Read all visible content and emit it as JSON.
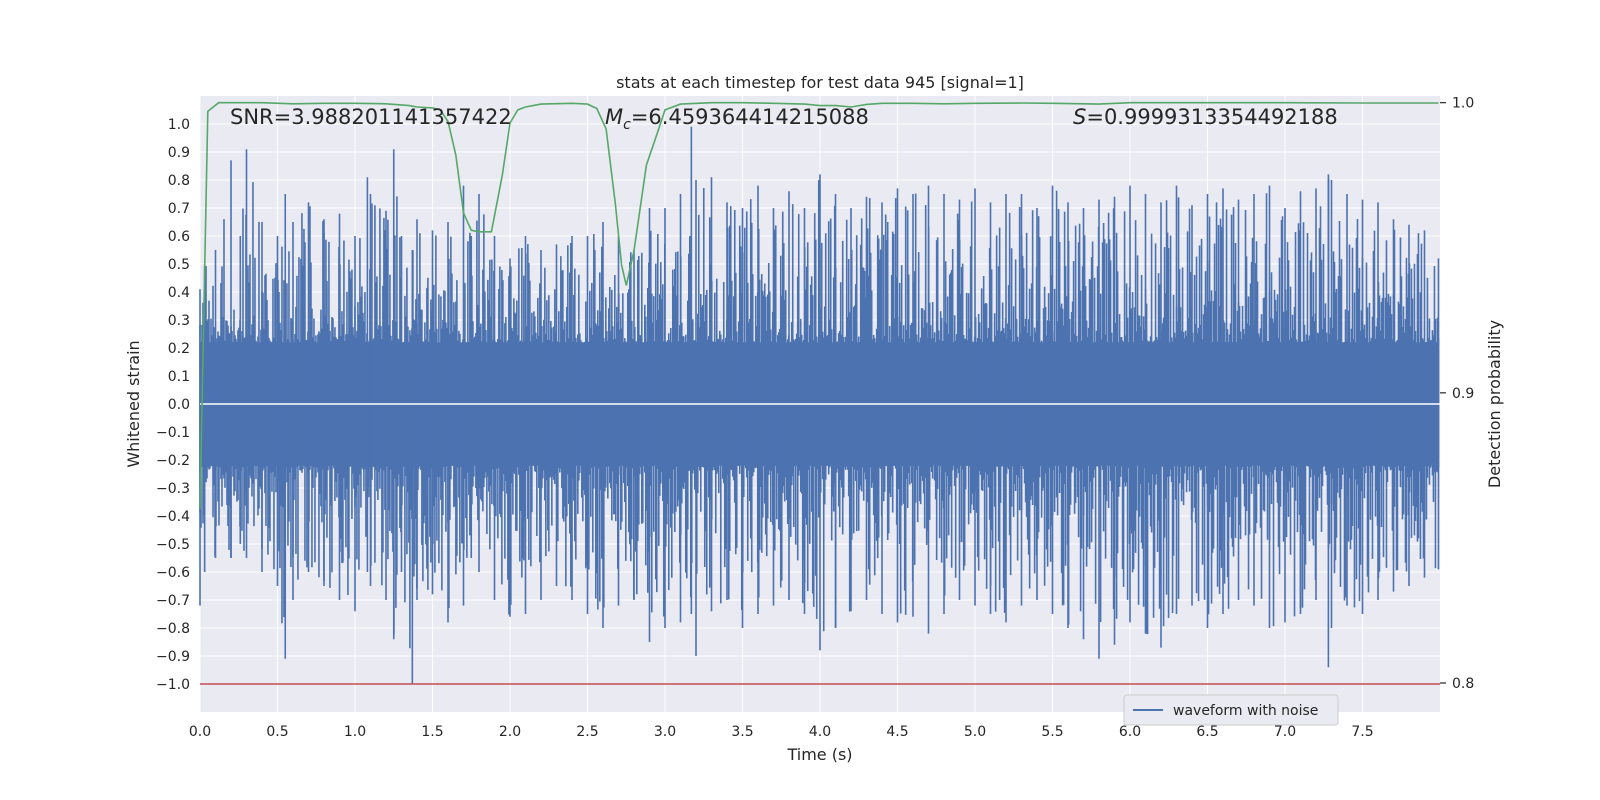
{
  "chart_data": {
    "type": "line",
    "title": "stats at each timestep for test data 945 [signal=1]",
    "xlabel": "Time (s)",
    "ylabel": "Whitened strain",
    "y2label": "Detection probability",
    "xlim": [
      0.0,
      8.0
    ],
    "ylim": [
      -1.1,
      1.1
    ],
    "y2lim": [
      0.79,
      1.0023
    ],
    "x_ticks": [
      0.0,
      0.5,
      1.0,
      1.5,
      2.0,
      2.5,
      3.0,
      3.5,
      4.0,
      4.5,
      5.0,
      5.5,
      6.0,
      6.5,
      7.0,
      7.5
    ],
    "x_tick_labels": [
      "0.0",
      "0.5",
      "1.0",
      "1.5",
      "2.0",
      "2.5",
      "3.0",
      "3.5",
      "4.0",
      "4.5",
      "5.0",
      "5.5",
      "6.0",
      "6.5",
      "7.0",
      "7.5"
    ],
    "y_ticks": [
      1.0,
      0.9,
      0.8,
      0.7,
      0.6,
      0.5,
      0.4,
      0.3,
      0.2,
      0.1,
      0.0,
      -0.1,
      -0.2,
      -0.3,
      -0.4,
      -0.5,
      -0.6,
      -0.7,
      -0.8,
      -0.9,
      -1.0
    ],
    "y_tick_labels": [
      "1.0",
      "0.9",
      "0.8",
      "0.7",
      "0.6",
      "0.5",
      "0.4",
      "0.3",
      "0.2",
      "0.1",
      "0.0",
      "−0.1",
      "−0.2",
      "−0.3",
      "−0.4",
      "−0.5",
      "−0.6",
      "−0.7",
      "−0.8",
      "−0.9",
      "−1.0"
    ],
    "y2_ticks": [
      1.0,
      0.9,
      0.8
    ],
    "y2_tick_labels": [
      "1.0",
      "0.9",
      "0.8"
    ],
    "grid": true,
    "legend": {
      "placement": "lower-right",
      "entries": [
        "waveform with noise"
      ]
    },
    "annotations": {
      "snr": "SNR=3.988201141357422",
      "mc_symbol": "M",
      "mc_sub": "c",
      "mc_value": "=6.459364414215088",
      "s_symbol": "S",
      "s_value": "=0.9999313354492188"
    },
    "reference_lines": {
      "y_zero": 0.0,
      "y_min": -1.0
    },
    "series": [
      {
        "name": "waveform with noise",
        "color": "#4c72b0",
        "envelope": {
          "x": [
            0.0,
            0.03,
            0.1,
            0.2,
            0.26,
            0.3,
            0.4,
            0.5,
            0.55,
            0.6,
            0.7,
            0.8,
            0.9,
            1.0,
            1.08,
            1.1,
            1.2,
            1.25,
            1.3,
            1.37,
            1.4,
            1.5,
            1.6,
            1.7,
            1.75,
            1.8,
            1.9,
            2.0,
            2.1,
            2.2,
            2.3,
            2.4,
            2.5,
            2.6,
            2.7,
            2.8,
            2.9,
            3.0,
            3.1,
            3.17,
            3.2,
            3.3,
            3.4,
            3.5,
            3.6,
            3.7,
            3.8,
            3.9,
            4.0,
            4.1,
            4.2,
            4.3,
            4.4,
            4.5,
            4.6,
            4.7,
            4.8,
            4.9,
            5.0,
            5.1,
            5.2,
            5.3,
            5.4,
            5.5,
            5.6,
            5.7,
            5.8,
            5.9,
            6.0,
            6.1,
            6.2,
            6.3,
            6.4,
            6.5,
            6.6,
            6.7,
            6.8,
            6.9,
            7.0,
            7.1,
            7.2,
            7.28,
            7.3,
            7.4,
            7.5,
            7.6,
            7.7,
            7.8,
            7.9,
            7.99
          ],
          "upper": [
            0.41,
            0.5,
            0.55,
            0.87,
            0.6,
            0.91,
            0.65,
            0.6,
            0.75,
            0.65,
            0.72,
            0.66,
            0.68,
            0.6,
            0.81,
            0.75,
            0.69,
            0.91,
            0.6,
            0.55,
            0.66,
            0.62,
            0.65,
            0.78,
            0.6,
            0.75,
            0.6,
            0.52,
            0.6,
            0.55,
            0.57,
            0.6,
            0.6,
            0.65,
            0.6,
            0.55,
            0.7,
            0.7,
            0.75,
            0.99,
            0.8,
            0.81,
            0.72,
            0.7,
            0.78,
            0.7,
            0.76,
            0.7,
            0.82,
            0.75,
            0.7,
            0.74,
            0.72,
            0.77,
            0.75,
            0.78,
            0.75,
            0.73,
            0.77,
            0.72,
            0.75,
            0.75,
            0.7,
            0.78,
            0.72,
            0.7,
            0.73,
            0.74,
            0.78,
            0.75,
            0.72,
            0.78,
            0.71,
            0.75,
            0.77,
            0.73,
            0.75,
            0.78,
            0.7,
            0.76,
            0.77,
            0.82,
            0.8,
            0.75,
            0.73,
            0.72,
            0.66,
            0.64,
            0.62,
            0.52
          ],
          "lower": [
            -0.72,
            -0.6,
            -0.55,
            -0.55,
            -0.5,
            -0.55,
            -0.6,
            -0.65,
            -0.91,
            -0.7,
            -0.6,
            -0.65,
            -0.7,
            -0.74,
            -0.6,
            -0.65,
            -0.7,
            -0.84,
            -0.6,
            -1.0,
            -0.7,
            -0.68,
            -0.78,
            -0.72,
            -0.55,
            -0.6,
            -0.7,
            -0.76,
            -0.75,
            -0.7,
            -0.65,
            -0.7,
            -0.75,
            -0.8,
            -0.72,
            -0.7,
            -0.85,
            -0.8,
            -0.78,
            -0.75,
            -0.9,
            -0.74,
            -0.7,
            -0.8,
            -0.75,
            -0.72,
            -0.7,
            -0.75,
            -0.88,
            -0.8,
            -0.74,
            -0.7,
            -0.75,
            -0.78,
            -0.76,
            -0.82,
            -0.75,
            -0.7,
            -0.72,
            -0.75,
            -0.78,
            -0.72,
            -0.7,
            -0.75,
            -0.8,
            -0.84,
            -0.91,
            -0.86,
            -0.78,
            -0.82,
            -0.87,
            -0.75,
            -0.72,
            -0.8,
            -0.75,
            -0.7,
            -0.72,
            -0.8,
            -0.78,
            -0.75,
            -0.7,
            -0.94,
            -0.8,
            -0.72,
            -0.75,
            -0.7,
            -0.67,
            -0.65,
            -0.62,
            -0.59
          ]
        }
      },
      {
        "name": "",
        "axis": "right",
        "color": "#55a868",
        "x": [
          0.0,
          0.05,
          0.12,
          0.2,
          0.4,
          0.6,
          0.8,
          1.0,
          1.2,
          1.35,
          1.4,
          1.5,
          1.55,
          1.6,
          1.65,
          1.7,
          1.75,
          1.8,
          1.88,
          1.95,
          2.0,
          2.05,
          2.1,
          2.2,
          2.4,
          2.5,
          2.56,
          2.62,
          2.68,
          2.72,
          2.75,
          2.8,
          2.88,
          2.95,
          3.0,
          3.1,
          3.3,
          3.5,
          3.7,
          3.9,
          4.0,
          4.1,
          4.2,
          4.3,
          4.4,
          4.6,
          4.8,
          5.0,
          5.3,
          5.5,
          5.8,
          6.0,
          6.5,
          7.0,
          7.5,
          7.99
        ],
        "y": [
          0.86,
          0.997,
          1.0,
          1.0,
          1.0,
          0.9996,
          0.9998,
          0.9998,
          0.9996,
          0.999,
          0.9985,
          0.9982,
          0.9975,
          0.9935,
          0.982,
          0.962,
          0.956,
          0.9555,
          0.9555,
          0.975,
          0.993,
          0.9975,
          0.9985,
          0.9995,
          0.9998,
          0.9995,
          0.998,
          0.991,
          0.965,
          0.944,
          0.937,
          0.949,
          0.9785,
          0.9895,
          0.9975,
          0.9995,
          1.0,
          1.0,
          0.9998,
          0.9995,
          0.999,
          0.999,
          0.9985,
          0.9994,
          0.9998,
          0.9998,
          0.9996,
          0.9998,
          0.9999,
          0.9998,
          0.9995,
          1.0,
          1.0,
          1.0,
          0.9999,
          0.9999
        ]
      },
      {
        "name": "",
        "color": "#c44e52",
        "y_constant": -1.0
      }
    ]
  }
}
